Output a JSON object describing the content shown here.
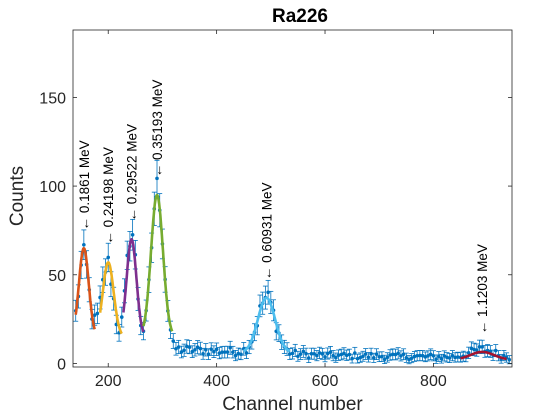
{
  "chart_data": {
    "type": "scatter",
    "title": "Ra226",
    "xlabel": "Channel number",
    "ylabel": "Counts",
    "xlim": [
      135,
      945
    ],
    "ylim": [
      -2,
      188
    ],
    "xticks": [
      200,
      400,
      600,
      800
    ],
    "yticks": [
      0,
      50,
      100,
      150
    ],
    "grid": false,
    "legend": "none",
    "colors": {
      "data": "#0072BD",
      "fit_0_1861": "#D95319",
      "fit_0_24198": "#EDB120",
      "fit_0_29522": "#7E2F8E",
      "fit_0_35193": "#77AC30",
      "fit_0_60931": "#4DBEEE",
      "fit_1_1203": "#A2142F"
    },
    "peaks": [
      {
        "label": "0.1861 MeV",
        "channel": 155,
        "amplitude": 50,
        "sigma": 9,
        "baseline": 15,
        "fit_range": [
          140,
          175
        ]
      },
      {
        "label": "0.24198 MeV",
        "channel": 200,
        "amplitude": 42,
        "sigma": 10,
        "baseline": 15,
        "fit_range": [
          185,
          225
        ]
      },
      {
        "label": "0.29522 MeV",
        "channel": 243,
        "amplitude": 55,
        "sigma": 9,
        "baseline": 15,
        "fit_range": [
          228,
          265
        ]
      },
      {
        "label": "0.35193 MeV",
        "channel": 290,
        "amplitude": 80,
        "sigma": 11,
        "baseline": 15,
        "fit_range": [
          265,
          318
        ]
      },
      {
        "label": "0.60931 MeV",
        "channel": 492,
        "amplitude": 31,
        "sigma": 16,
        "baseline": 6,
        "fit_range": [
          450,
          535
        ]
      },
      {
        "label": "1.1203 MeV",
        "channel": 890,
        "amplitude": 4.5,
        "sigma": 22,
        "baseline": 2,
        "fit_range": [
          850,
          935
        ]
      }
    ],
    "series": [
      {
        "type": "errorbar",
        "x_range": [
          140,
          940
        ],
        "step": 5,
        "model": "sum of peaks"
      },
      {
        "type": "fit",
        "peak": "0.1861 MeV"
      },
      {
        "type": "fit",
        "peak": "0.24198 MeV"
      },
      {
        "type": "fit",
        "peak": "0.29522 MeV"
      },
      {
        "type": "fit",
        "peak": "0.35193 MeV"
      },
      {
        "type": "fit",
        "peak": "0.60931 MeV"
      },
      {
        "type": "fit",
        "peak": "1.1203 MeV"
      }
    ]
  }
}
